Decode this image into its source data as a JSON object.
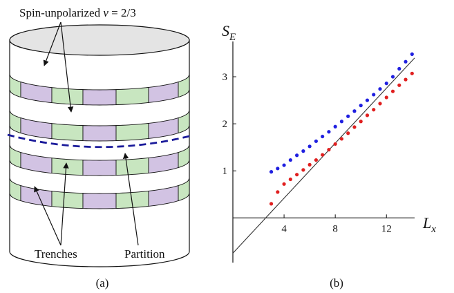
{
  "panel_a": {
    "label": "(a)",
    "annotations": {
      "top_text": "Spin-unpolarized ",
      "nu_symbol": "ν",
      "nu_value": " = 2/3",
      "trenches": "Trenches",
      "partition": "Partition"
    },
    "colors": {
      "trench_green": "#c8e6c0",
      "trench_purple": "#d2c3e3",
      "partition_line": "#1a1a9a",
      "top_cap": "#e4e4e4"
    }
  },
  "panel_b": {
    "label": "(b)",
    "ylabel_main": "S",
    "ylabel_sub": "E",
    "xlabel_main": "L",
    "xlabel_sub": "x"
  },
  "chart_data": {
    "type": "scatter",
    "title": "",
    "xlabel": "L_x",
    "ylabel": "S_E",
    "xlim": [
      0,
      14.2
    ],
    "ylim": [
      -0.95,
      3.75
    ],
    "xticks": [
      4,
      8,
      12
    ],
    "yticks": [
      1,
      2,
      3
    ],
    "grid": false,
    "series": [
      {
        "color": "#1f1fe0",
        "x": [
          3,
          3.5,
          4,
          4.5,
          5,
          5.5,
          6,
          6.5,
          7,
          7.5,
          8,
          8.5,
          9,
          9.5,
          10,
          10.5,
          11,
          11.5,
          12,
          12.5,
          13,
          13.5,
          14
        ],
        "y": [
          0.98,
          1.05,
          1.12,
          1.23,
          1.33,
          1.42,
          1.52,
          1.63,
          1.73,
          1.83,
          1.94,
          2.05,
          2.16,
          2.27,
          2.39,
          2.5,
          2.62,
          2.74,
          2.86,
          3.0,
          3.17,
          3.32,
          3.48
        ]
      },
      {
        "color": "#e01f1f",
        "x": [
          3,
          3.5,
          4,
          4.5,
          5,
          5.5,
          6,
          6.5,
          7,
          7.5,
          8,
          8.5,
          9,
          9.5,
          10,
          10.5,
          11,
          11.5,
          12,
          12.5,
          13,
          13.5,
          14
        ],
        "y": [
          0.3,
          0.55,
          0.72,
          0.82,
          0.92,
          1.02,
          1.13,
          1.23,
          1.34,
          1.45,
          1.57,
          1.68,
          1.8,
          1.93,
          2.05,
          2.18,
          2.3,
          2.43,
          2.56,
          2.69,
          2.82,
          2.94,
          3.07
        ]
      }
    ],
    "reference_line": {
      "color": "#333333",
      "x": [
        0,
        14.2
      ],
      "y": [
        -0.75,
        3.4
      ]
    }
  }
}
